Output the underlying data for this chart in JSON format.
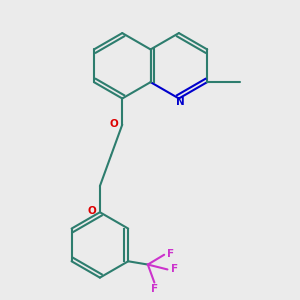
{
  "bg_color": "#ebebeb",
  "bond_color": "#2d7d6e",
  "N_color": "#0000cc",
  "O_color": "#dd0000",
  "F_color": "#cc33cc",
  "line_width": 1.5,
  "figsize": [
    3.0,
    3.0
  ],
  "dpi": 100,
  "bl": 0.33,
  "xlim": [
    0,
    3
  ],
  "ylim": [
    0,
    3
  ]
}
